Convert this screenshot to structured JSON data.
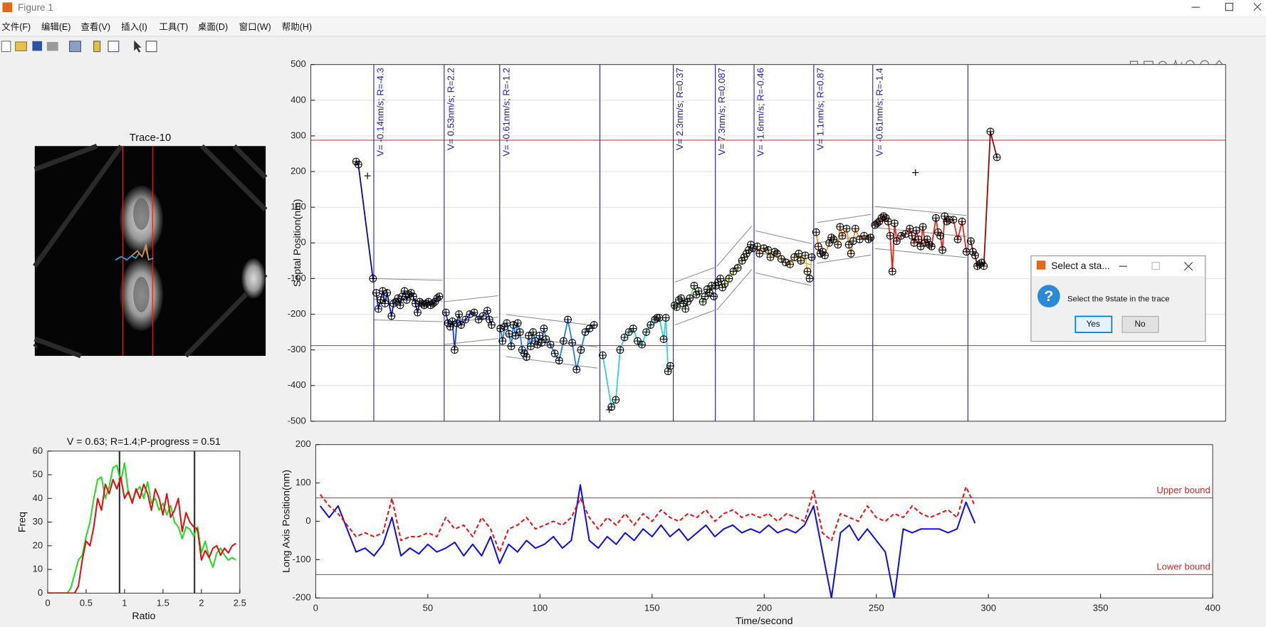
{
  "window": {
    "title": "Figure 1",
    "menu": [
      "文件(F)",
      "编辑(E)",
      "查看(V)",
      "插入(I)",
      "工具(T)",
      "桌面(D)",
      "窗口(W)",
      "帮助(H)"
    ]
  },
  "image_panel": {
    "title": "Trace-10"
  },
  "dialog": {
    "title": "Select a sta...",
    "message": "Select the 9state in the trace",
    "buttons": [
      "Yes",
      "No"
    ]
  },
  "chart_data": [
    {
      "type": "line",
      "ylabel": "Septal Position(nm)",
      "xlim": [
        -20,
        400
      ],
      "ylim": [
        -500,
        500
      ],
      "yticks": [
        -500,
        -400,
        -300,
        -200,
        -100,
        0,
        100,
        200,
        300,
        400,
        500
      ],
      "grid": true,
      "markers": true,
      "hlines": [
        288,
        -288
      ],
      "hline_color": "#cc2a2a",
      "vlines": [
        8.9,
        41.2,
        66.7,
        112.7,
        146.4,
        165.7,
        183.5,
        210.9,
        238,
        281.7
      ],
      "vline_color": "#2626b8",
      "annotations": [
        {
          "x": 8.9,
          "text": "V= -0.14nm/s; R=-4.3"
        },
        {
          "x": 41.2,
          "text": "V= 0.53nm/s; R=2.2"
        },
        {
          "x": 66.7,
          "text": "V= -0.61nm/s; R=-1.2"
        },
        {
          "x": 146.4,
          "text": "V= 2.3nm/s; R=0.37"
        },
        {
          "x": 165.7,
          "text": "V= 7.3nm/s; R=0.087"
        },
        {
          "x": 183.5,
          "text": "V= -1.6nm/s; R=-0.46"
        },
        {
          "x": 210.9,
          "text": "V= 1.1nm/s; R=0.87"
        },
        {
          "x": 238,
          "text": "V= -0.61nm/s; R=-1.4"
        }
      ],
      "bands": [
        {
          "x": [
            8.9,
            40.4
          ],
          "center": [
            -158,
            -163
          ],
          "half_width": 58
        },
        {
          "x": [
            41.2,
            66
          ],
          "center": [
            -225,
            -208
          ],
          "half_width": 60
        },
        {
          "x": [
            69.7,
            111.6
          ],
          "center": [
            -260,
            -292
          ],
          "half_width": 59
        },
        {
          "x": [
            147.2,
            165.3
          ],
          "center": [
            -170,
            -129
          ],
          "half_width": 60
        },
        {
          "x": [
            166.4,
            182.4
          ],
          "center": [
            -127,
            -14
          ],
          "half_width": 61
        },
        {
          "x": [
            184.2,
            209.8
          ],
          "center": [
            -25,
            -61
          ],
          "half_width": 59
        },
        {
          "x": [
            212.4,
            237.2
          ],
          "center": [
            0,
            23
          ],
          "half_width": 57
        },
        {
          "x": [
            239.1,
            281
          ],
          "center": [
            43,
            18
          ],
          "half_width": 59
        }
      ],
      "extra_points": {
        "x": [
          6,
          257.6,
          117
        ],
        "values": [
          188,
          197,
          -468
        ]
      },
      "series": [
        {
          "color": "#0a0a8c",
          "x": [
            0.8,
            1.8,
            8.5
          ],
          "values": [
            228,
            220,
            -100
          ]
        },
        {
          "color": "#10109e",
          "x": [
            10,
            11,
            12,
            13,
            14,
            15,
            17,
            18,
            19,
            20,
            21,
            22,
            23,
            24,
            25,
            26,
            27,
            28,
            29,
            30,
            31,
            32,
            33,
            34,
            35,
            36,
            37,
            38,
            39
          ],
          "values": [
            -140,
            -185,
            -160,
            -135,
            -170,
            -140,
            -205,
            -170,
            -165,
            -155,
            -175,
            -150,
            -135,
            -160,
            -145,
            -140,
            -150,
            -170,
            -195,
            -165,
            -170,
            -175,
            -170,
            -165,
            -175,
            -170,
            -165,
            -155,
            -150
          ]
        },
        {
          "color": "#1c3cd6",
          "x": [
            42,
            43,
            44,
            45,
            46,
            47,
            48,
            49,
            51,
            53,
            55,
            57,
            59,
            61,
            62,
            63
          ],
          "values": [
            -195,
            -225,
            -235,
            -220,
            -300,
            -225,
            -200,
            -230,
            -215,
            -200,
            -195,
            -215,
            -205,
            -190,
            -215,
            -230
          ]
        },
        {
          "color": "#2b7fe0",
          "x": [
            67,
            68,
            69,
            70,
            71,
            72,
            73,
            74,
            75,
            76,
            77,
            78,
            79,
            80,
            81,
            82,
            83,
            84,
            85,
            86,
            87,
            88,
            90,
            92,
            94,
            96,
            98,
            100,
            102,
            104,
            106,
            108,
            110
          ],
          "values": [
            -240,
            -275,
            -235,
            -225,
            -255,
            -290,
            -230,
            -260,
            -225,
            -250,
            -300,
            -310,
            -320,
            -260,
            -290,
            -250,
            -275,
            -285,
            -260,
            -280,
            -240,
            -270,
            -285,
            -310,
            -330,
            -275,
            -215,
            -280,
            -355,
            -300,
            -250,
            -240,
            -230
          ]
        },
        {
          "color": "#36d0d8",
          "x": [
            114,
            118,
            120,
            122,
            124,
            126,
            128,
            130,
            132,
            134,
            136,
            138,
            139,
            140,
            142,
            143,
            144,
            145
          ],
          "values": [
            -315,
            -460,
            -440,
            -300,
            -265,
            -250,
            -240,
            -275,
            -285,
            -250,
            -230,
            -215,
            -210,
            -210,
            -270,
            -210,
            -360,
            -345
          ]
        },
        {
          "color": "#8fdc6a",
          "x": [
            147,
            148,
            149,
            150,
            151,
            152,
            153,
            154,
            156,
            157,
            158,
            160,
            161,
            162,
            163,
            164,
            165
          ],
          "values": [
            -175,
            -180,
            -160,
            -155,
            -170,
            -185,
            -165,
            -155,
            -120,
            -145,
            -135,
            -165,
            -150,
            -130,
            -140,
            -120,
            -150
          ]
        },
        {
          "color": "#cbe04a",
          "x": [
            166,
            167,
            168,
            169,
            170,
            172,
            174,
            176,
            178,
            179,
            180,
            181,
            182,
            183
          ],
          "values": [
            -120,
            -110,
            -100,
            -125,
            -115,
            -100,
            -80,
            -70,
            -50,
            -40,
            -30,
            -20,
            -5,
            -15
          ]
        },
        {
          "color": "#f2c02e",
          "x": [
            185,
            186,
            188,
            190,
            191,
            193,
            194,
            196,
            198,
            200,
            202,
            204,
            205,
            207,
            208,
            209,
            210
          ],
          "values": [
            -10,
            -30,
            -15,
            -20,
            -40,
            -25,
            -30,
            -45,
            -55,
            -60,
            -40,
            -30,
            -50,
            -35,
            -80,
            -100,
            -40
          ]
        },
        {
          "color": "#f2952e",
          "x": [
            212,
            213,
            214,
            215,
            216,
            218,
            219,
            220,
            222,
            223,
            224,
            226,
            227,
            228,
            229,
            230,
            232,
            234,
            236,
            237
          ],
          "values": [
            30,
            -10,
            -30,
            -25,
            -35,
            0,
            15,
            10,
            -5,
            45,
            20,
            40,
            -5,
            -30,
            5,
            40,
            10,
            20,
            10,
            15
          ]
        },
        {
          "color": "#e42a1c",
          "x": [
            239,
            240,
            241,
            242,
            243,
            244,
            245,
            246,
            247,
            248,
            249,
            251,
            253,
            255,
            256,
            257,
            258,
            259,
            260,
            261,
            262,
            263,
            264,
            265,
            267,
            268,
            269,
            270,
            271,
            272,
            273,
            275,
            277,
            279,
            281
          ],
          "values": [
            50,
            55,
            60,
            70,
            75,
            70,
            60,
            20,
            -80,
            55,
            5,
            20,
            25,
            40,
            20,
            0,
            35,
            10,
            -10,
            45,
            0,
            10,
            -5,
            -10,
            70,
            30,
            20,
            -20,
            75,
            60,
            65,
            65,
            10,
            60,
            -25
          ]
        },
        {
          "color": "#8c0c0c",
          "x": [
            283,
            284,
            285,
            286,
            287,
            288,
            289,
            292,
            295
          ],
          "values": [
            5,
            -25,
            -35,
            -65,
            -60,
            -55,
            -65,
            312,
            240
          ]
        }
      ]
    },
    {
      "type": "line",
      "title": "V = 0.63; R=1.4;P-progress = 0.51",
      "xlabel": "Ratio",
      "ylabel": "Freq",
      "xlim": [
        0,
        2.5
      ],
      "xticks": [
        0,
        0.5,
        1,
        1.5,
        2,
        2.5
      ],
      "ylim": [
        0,
        60
      ],
      "yticks": [
        0,
        10,
        20,
        30,
        40,
        50,
        60
      ],
      "vlines": [
        0.935,
        1.91
      ],
      "vline_color": "#3a3a3a",
      "x": [
        0,
        0.05,
        0.1,
        0.15,
        0.2,
        0.25,
        0.3,
        0.35,
        0.4,
        0.45,
        0.5,
        0.55,
        0.6,
        0.65,
        0.7,
        0.75,
        0.8,
        0.85,
        0.9,
        0.95,
        1,
        1.05,
        1.1,
        1.15,
        1.2,
        1.25,
        1.3,
        1.35,
        1.4,
        1.45,
        1.5,
        1.55,
        1.6,
        1.65,
        1.7,
        1.75,
        1.8,
        1.85,
        1.9,
        1.95,
        2,
        2.05,
        2.1,
        2.15,
        2.2,
        2.25,
        2.3,
        2.35,
        2.4,
        2.45
      ],
      "series": [
        {
          "color": "#22dd22",
          "values": [
            0,
            0,
            0,
            0,
            0,
            0,
            2,
            8,
            14,
            16,
            24,
            30,
            40,
            48,
            49,
            40,
            45,
            53,
            54,
            47,
            55,
            42,
            39,
            43,
            45,
            40,
            47,
            38,
            40,
            35,
            38,
            33,
            37,
            30,
            28,
            23,
            28,
            27,
            24,
            28,
            17,
            22,
            15,
            11,
            17,
            19,
            16,
            14,
            15,
            14
          ]
        },
        {
          "color": "#dd1111",
          "values": [
            0,
            0,
            0,
            0,
            0,
            0,
            0,
            0,
            3,
            14,
            22,
            20,
            28,
            40,
            35,
            46,
            42,
            48,
            44,
            49,
            40,
            43,
            38,
            44,
            40,
            46,
            42,
            35,
            44,
            40,
            33,
            42,
            32,
            35,
            40,
            26,
            34,
            30,
            28,
            27,
            14,
            18,
            15,
            19,
            20,
            16,
            19,
            17,
            20,
            21
          ]
        }
      ]
    },
    {
      "type": "line",
      "xlabel": "Time/second",
      "ylabel": "Long Axis Position(nm)",
      "xlim": [
        0,
        400
      ],
      "xticks": [
        0,
        50,
        100,
        150,
        200,
        250,
        300,
        350,
        400
      ],
      "ylim": [
        -200,
        200
      ],
      "yticks": [
        -200,
        -100,
        0,
        100,
        200
      ],
      "hlines": [
        {
          "value": 61,
          "label": "Upper bound"
        },
        {
          "value": -139,
          "label": "Lower bound"
        }
      ],
      "hline_color": "#cc2a2a",
      "x": [
        2,
        6,
        10,
        14,
        18,
        22,
        26,
        30,
        34,
        38,
        42,
        46,
        50,
        54,
        58,
        62,
        66,
        70,
        74,
        78,
        82,
        86,
        90,
        94,
        98,
        102,
        106,
        110,
        114,
        118,
        122,
        126,
        130,
        134,
        138,
        142,
        146,
        150,
        154,
        158,
        162,
        166,
        170,
        174,
        178,
        182,
        186,
        190,
        194,
        198,
        202,
        206,
        210,
        214,
        218,
        222,
        226,
        230,
        234,
        238,
        242,
        246,
        250,
        254,
        258,
        262,
        266,
        270,
        274,
        278,
        282,
        286,
        290,
        294
      ],
      "series": [
        {
          "color": "#1010dd",
          "values": [
            40,
            10,
            40,
            -20,
            -80,
            -70,
            -90,
            -60,
            10,
            -90,
            -70,
            -85,
            -60,
            -80,
            -70,
            -55,
            -90,
            -60,
            -90,
            -40,
            -110,
            -60,
            -80,
            -50,
            -70,
            -60,
            -40,
            -70,
            -50,
            95,
            -50,
            -70,
            -40,
            -60,
            -30,
            -50,
            -20,
            -40,
            -10,
            -40,
            -20,
            -50,
            -30,
            -10,
            -40,
            -20,
            -10,
            -30,
            -20,
            -30,
            -10,
            -30,
            -20,
            -30,
            -10,
            40,
            -80,
            -200,
            -30,
            -10,
            -50,
            -20,
            -50,
            -80,
            -200,
            -20,
            -30,
            -20,
            -20,
            -20,
            -30,
            -20,
            50,
            -5
          ]
        },
        {
          "color": "#ee1111",
          "dashed": true,
          "values": [
            70,
            40,
            20,
            -10,
            -40,
            -30,
            -40,
            -30,
            60,
            -50,
            -40,
            -40,
            -30,
            -40,
            10,
            -20,
            -10,
            -40,
            10,
            -20,
            -80,
            -20,
            -10,
            10,
            -20,
            -10,
            0,
            -10,
            10,
            60,
            10,
            -20,
            10,
            -10,
            20,
            -10,
            20,
            0,
            30,
            10,
            0,
            20,
            10,
            30,
            0,
            20,
            30,
            10,
            20,
            10,
            20,
            0,
            20,
            10,
            0,
            80,
            -30,
            -50,
            20,
            10,
            0,
            40,
            10,
            0,
            20,
            10,
            40,
            20,
            10,
            20,
            30,
            10,
            90,
            40
          ]
        }
      ]
    }
  ]
}
